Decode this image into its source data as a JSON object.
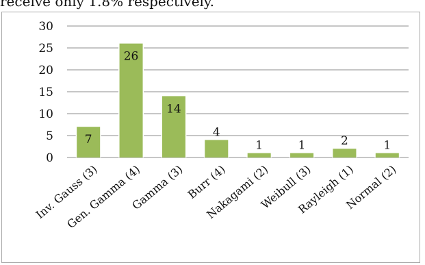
{
  "page": {
    "top_text": "receive only 1.8% respectively."
  },
  "chart_data": {
    "type": "bar",
    "title": "",
    "xlabel": "",
    "ylabel": "",
    "categories": [
      "Inv. Gauss (3)",
      "Gen. Gamma (4)",
      "Gamma (3)",
      "Burr (4)",
      "Nakagami (2)",
      "Weibull (3)",
      "Rayleigh (1)",
      "Normal (2)"
    ],
    "values": [
      7,
      26,
      14,
      4,
      1,
      1,
      2,
      1
    ],
    "data_labels": [
      "7",
      "26",
      "14",
      "4",
      "1",
      "1",
      "2",
      "1"
    ],
    "ylim": [
      0,
      30
    ],
    "yticks": [
      0,
      5,
      10,
      15,
      20,
      25,
      30
    ],
    "grid": true,
    "legend": "none",
    "bar_color": "#9bbb59"
  }
}
